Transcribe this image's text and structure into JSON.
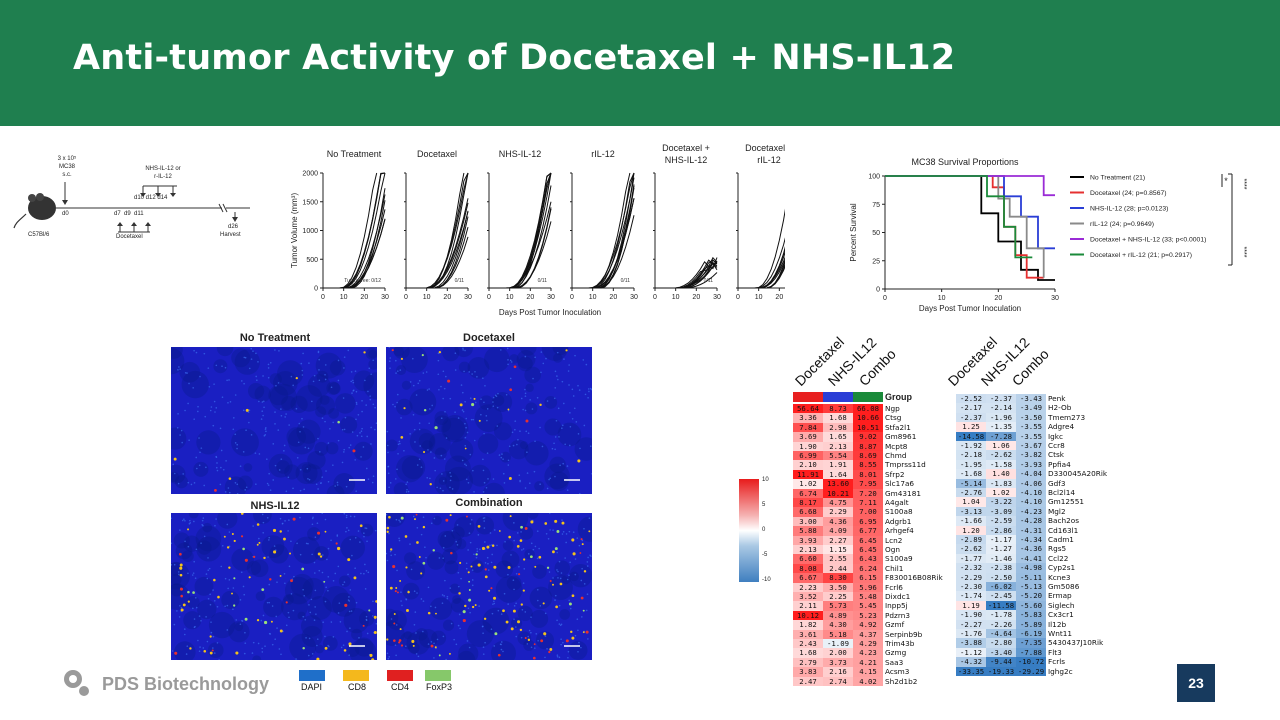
{
  "title": "Anti-tumor Activity of Docetaxel + NHS-IL12",
  "schematic": {
    "cells_label": "3 x 10⁵",
    "cells_line2": "MC38",
    "cells_line3": "s.c.",
    "mouse_label": "C57Bl/6",
    "d0": "d0",
    "treat_label_1": "NHS-IL-12 or",
    "treat_label_2": "r-IL-12",
    "treat_days": "d10 d12 d14",
    "doc_days": "d7  d9  d11",
    "doc_label": "Docetaxel",
    "harvest_day": "d26",
    "harvest_label": "Harvest"
  },
  "tumor_growth": {
    "panels": [
      "No Treatment",
      "Docetaxel",
      "NHS-IL-12",
      "rIL-12",
      "Docetaxel +\nNHS-IL-12",
      "Docetaxel +\nrIL-12"
    ],
    "ylabel": "Tumor Volume (mm³)",
    "xlabel": "Days Post Tumor Inoculation",
    "yticks": [
      "0",
      "500",
      "1000",
      "1500",
      "2000"
    ],
    "xticks": [
      "0",
      "10",
      "20",
      "30"
    ],
    "annotations": [
      "Tumor free: 0/12",
      "0/11",
      "0/11",
      "0/11",
      "0/11",
      "0/11"
    ]
  },
  "chart_data": {
    "type": "line",
    "title": "MC38 Survival Proportions",
    "xlabel": "Days Post Tumor Inoculation",
    "ylabel": "Percent Survival",
    "xlim": [
      0,
      30
    ],
    "ylim": [
      0,
      100
    ],
    "xticks": [
      "0",
      "10",
      "20",
      "30"
    ],
    "yticks": [
      "0",
      "25",
      "50",
      "75",
      "100"
    ],
    "series": [
      {
        "name": "No Treatment (21)",
        "color": "#000000",
        "points": [
          [
            0,
            100
          ],
          [
            17,
            100
          ],
          [
            17,
            67
          ],
          [
            20,
            67
          ],
          [
            20,
            42
          ],
          [
            24,
            42
          ],
          [
            24,
            17
          ],
          [
            27,
            17
          ],
          [
            27,
            8
          ],
          [
            30,
            8
          ]
        ]
      },
      {
        "name": "Docetaxel  (24; p=0.8567)",
        "color": "#e53030",
        "points": [
          [
            0,
            100
          ],
          [
            19,
            100
          ],
          [
            19,
            90
          ],
          [
            21,
            90
          ],
          [
            21,
            55
          ],
          [
            23,
            55
          ],
          [
            23,
            30
          ],
          [
            25,
            30
          ],
          [
            25,
            10
          ],
          [
            28,
            10
          ]
        ]
      },
      {
        "name": "NHS-IL-12 (28; p=0.0123)",
        "color": "#2a3ed6",
        "points": [
          [
            0,
            100
          ],
          [
            21,
            100
          ],
          [
            21,
            82
          ],
          [
            24,
            82
          ],
          [
            24,
            64
          ],
          [
            27,
            64
          ],
          [
            27,
            36
          ],
          [
            30,
            36
          ]
        ]
      },
      {
        "name": "rIL-12 (24; p=0.9649)",
        "color": "#8a8a8a",
        "points": [
          [
            0,
            100
          ],
          [
            20,
            100
          ],
          [
            20,
            80
          ],
          [
            22,
            80
          ],
          [
            22,
            64
          ],
          [
            25,
            64
          ],
          [
            25,
            36
          ],
          [
            28,
            36
          ],
          [
            28,
            10
          ]
        ]
      },
      {
        "name": "Docetaxel + NHS-IL-12 (33; p<0.0001)",
        "color": "#9a2bd6",
        "points": [
          [
            0,
            100
          ],
          [
            28,
            100
          ],
          [
            28,
            83
          ],
          [
            30,
            83
          ]
        ]
      },
      {
        "name": "Docetaxel + rIL-12 (21; p=0.2917)",
        "color": "#1a8a3a",
        "points": [
          [
            0,
            100
          ],
          [
            18,
            100
          ],
          [
            18,
            82
          ],
          [
            21,
            82
          ],
          [
            21,
            55
          ],
          [
            23,
            55
          ],
          [
            23,
            28
          ],
          [
            26,
            28
          ]
        ]
      }
    ],
    "significance": [
      "*",
      "****",
      "****"
    ]
  },
  "microscopy": {
    "panels": [
      "No Treatment",
      "Docetaxel",
      "NHS-IL12",
      "Combination"
    ],
    "legend": [
      {
        "label": "DAPI",
        "color": "#1f6fc9"
      },
      {
        "label": "CD8",
        "color": "#f4b81c"
      },
      {
        "label": "CD4",
        "color": "#e02020"
      },
      {
        "label": "FoxP3",
        "color": "#86c86a"
      }
    ]
  },
  "colorbar": {
    "ticks": [
      "10",
      "5",
      "0",
      "-5",
      "-10"
    ]
  },
  "heatmap_left": {
    "headers": [
      "Docetaxel",
      "NHS-IL12",
      "Combo"
    ],
    "group_label": "Group",
    "group_colors": [
      "#e82020",
      "#2a3ed6",
      "#1a8a3a"
    ],
    "rows": [
      {
        "v": [
          "56.64",
          "8.73",
          "66.08"
        ],
        "g": "Ngp"
      },
      {
        "v": [
          "3.36",
          "1.68",
          "10.66"
        ],
        "g": "Ctsg"
      },
      {
        "v": [
          "7.84",
          "2.98",
          "10.51"
        ],
        "g": "Stfa2l1"
      },
      {
        "v": [
          "3.69",
          "1.65",
          "9.02"
        ],
        "g": "Gm8961"
      },
      {
        "v": [
          "1.90",
          "2.13",
          "8.87"
        ],
        "g": "Mcpt8"
      },
      {
        "v": [
          "6.99",
          "5.54",
          "8.69"
        ],
        "g": "Chmd"
      },
      {
        "v": [
          "2.10",
          "1.91",
          "8.55"
        ],
        "g": "Tmprss11d"
      },
      {
        "v": [
          "11.91",
          "1.64",
          "8.01"
        ],
        "g": "Sfrp2"
      },
      {
        "v": [
          "1.02",
          "13.60",
          "7.95"
        ],
        "g": "Slc17a6"
      },
      {
        "v": [
          "6.74",
          "10.21",
          "7.20"
        ],
        "g": "Gm43181"
      },
      {
        "v": [
          "8.17",
          "4.75",
          "7.11"
        ],
        "g": "A4galt"
      },
      {
        "v": [
          "6.68",
          "2.29",
          "7.00"
        ],
        "g": "S100a8"
      },
      {
        "v": [
          "3.00",
          "4.36",
          "6.95"
        ],
        "g": "Adgrb1"
      },
      {
        "v": [
          "5.88",
          "4.09",
          "6.77"
        ],
        "g": "Arhgef4"
      },
      {
        "v": [
          "3.93",
          "2.27",
          "6.45"
        ],
        "g": "Lcn2"
      },
      {
        "v": [
          "2.13",
          "1.15",
          "6.45"
        ],
        "g": "Ogn"
      },
      {
        "v": [
          "6.60",
          "2.55",
          "6.43"
        ],
        "g": "S100a9"
      },
      {
        "v": [
          "8.08",
          "2.44",
          "6.24"
        ],
        "g": "Chil1"
      },
      {
        "v": [
          "6.67",
          "8.30",
          "6.15"
        ],
        "g": "F830016B08Rik"
      },
      {
        "v": [
          "2.23",
          "3.50",
          "5.96"
        ],
        "g": "Fcrl6"
      },
      {
        "v": [
          "3.52",
          "2.25",
          "5.48"
        ],
        "g": "Dixdc1"
      },
      {
        "v": [
          "2.11",
          "5.73",
          "5.45"
        ],
        "g": "Inpp5j"
      },
      {
        "v": [
          "10.12",
          "4.89",
          "5.23"
        ],
        "g": "Pdzrn3"
      },
      {
        "v": [
          "1.82",
          "4.30",
          "4.92"
        ],
        "g": "Gzmf"
      },
      {
        "v": [
          "3.61",
          "5.18",
          "4.37"
        ],
        "g": "Serpinb9b"
      },
      {
        "v": [
          "2.43",
          "-1.09",
          "4.29"
        ],
        "g": "Trim43b"
      },
      {
        "v": [
          "1.68",
          "2.00",
          "4.23"
        ],
        "g": "Gzmg"
      },
      {
        "v": [
          "2.79",
          "3.73",
          "4.21"
        ],
        "g": "Saa3"
      },
      {
        "v": [
          "3.83",
          "2.16",
          "4.15"
        ],
        "g": "Acsm3"
      },
      {
        "v": [
          "2.47",
          "2.74",
          "4.02"
        ],
        "g": "Sh2d1b2"
      }
    ]
  },
  "heatmap_right": {
    "headers": [
      "Docetaxel",
      "NHS-IL12",
      "Combo"
    ],
    "rows": [
      {
        "v": [
          "-2.52",
          "-2.37",
          "-3.43"
        ],
        "g": "Penk"
      },
      {
        "v": [
          "-2.17",
          "-2.14",
          "-3.49"
        ],
        "g": "H2-Ob"
      },
      {
        "v": [
          "-2.37",
          "-1.96",
          "-3.50"
        ],
        "g": "Tmem273"
      },
      {
        "v": [
          "1.25",
          "-1.35",
          "-3.55"
        ],
        "g": "Adgre4"
      },
      {
        "v": [
          "-14.58",
          "-7.28",
          "-3.55"
        ],
        "g": "Igkc"
      },
      {
        "v": [
          "-1.92",
          "1.06",
          "-3.67"
        ],
        "g": "Ccr8"
      },
      {
        "v": [
          "-2.18",
          "-2.62",
          "-3.82"
        ],
        "g": "Ctsk"
      },
      {
        "v": [
          "-1.95",
          "-1.58",
          "-3.93"
        ],
        "g": "Ppfia4"
      },
      {
        "v": [
          "-1.68",
          "1.40",
          "-4.04"
        ],
        "g": "D330045A20Rik"
      },
      {
        "v": [
          "-5.14",
          "-1.83",
          "-4.06"
        ],
        "g": "Gdf3"
      },
      {
        "v": [
          "-2.76",
          "1.02",
          "-4.10"
        ],
        "g": "Bcl2l14"
      },
      {
        "v": [
          "1.04",
          "-3.22",
          "-4.10"
        ],
        "g": "Gm12551"
      },
      {
        "v": [
          "-3.13",
          "-3.09",
          "-4.23"
        ],
        "g": "Mgl2"
      },
      {
        "v": [
          "-1.66",
          "-2.59",
          "-4.28"
        ],
        "g": "Bach2os"
      },
      {
        "v": [
          "1.20",
          "-2.86",
          "-4.31"
        ],
        "g": "Cd163l1"
      },
      {
        "v": [
          "-2.89",
          "-1.17",
          "-4.34"
        ],
        "g": "Cadm1"
      },
      {
        "v": [
          "-2.62",
          "-1.27",
          "-4.36"
        ],
        "g": "Rgs5"
      },
      {
        "v": [
          "-1.77",
          "-1.46",
          "-4.41"
        ],
        "g": "Ccl22"
      },
      {
        "v": [
          "-2.32",
          "-2.38",
          "-4.98"
        ],
        "g": "Cyp2s1"
      },
      {
        "v": [
          "-2.29",
          "-2.50",
          "-5.11"
        ],
        "g": "Kcne3"
      },
      {
        "v": [
          "-2.30",
          "-6.02",
          "-5.13"
        ],
        "g": "Gm5086"
      },
      {
        "v": [
          "-1.74",
          "-2.45",
          "-5.20"
        ],
        "g": "Ermap"
      },
      {
        "v": [
          "1.19",
          "-11.58",
          "-5.60"
        ],
        "g": "Siglech"
      },
      {
        "v": [
          "-1.90",
          "-1.78",
          "-5.83"
        ],
        "g": "Cx3cr1"
      },
      {
        "v": [
          "-2.27",
          "-2.26",
          "-5.89"
        ],
        "g": "Il12b"
      },
      {
        "v": [
          "-1.76",
          "-4.64",
          "-6.19"
        ],
        "g": "Wnt11"
      },
      {
        "v": [
          "-3.88",
          "-2.80",
          "-7.35"
        ],
        "g": "5430437J10Rik"
      },
      {
        "v": [
          "-1.12",
          "-3.40",
          "-7.88"
        ],
        "g": "Flt3"
      },
      {
        "v": [
          "-4.32",
          "-9.44",
          "-10.72"
        ],
        "g": "Fcrls"
      },
      {
        "v": [
          "-33.35",
          "-19.33",
          "-29.29"
        ],
        "g": "Ighg2c"
      }
    ]
  },
  "footer": {
    "company": "PDS Biotechnology",
    "page": "23"
  }
}
